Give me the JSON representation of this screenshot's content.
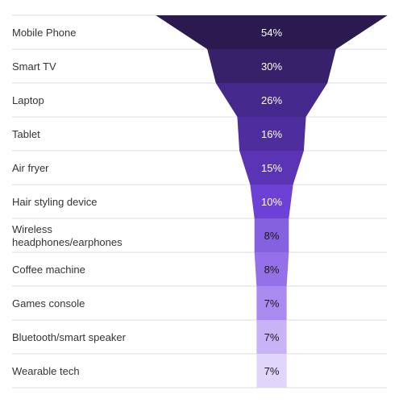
{
  "chart_data": {
    "type": "funnel",
    "title": "",
    "categories": [
      "Mobile Phone",
      "Smart TV",
      "Laptop",
      "Tablet",
      "Air fryer",
      "Hair styling device",
      "Wireless headphones/earphones",
      "Coffee machine",
      "Games console",
      "Bluetooth/smart speaker",
      "Wearable tech"
    ],
    "values": [
      54,
      30,
      26,
      16,
      15,
      10,
      8,
      8,
      7,
      7,
      7
    ],
    "value_labels": [
      "54%",
      "30%",
      "26%",
      "16%",
      "15%",
      "10%",
      "8%",
      "8%",
      "7%",
      "7%",
      "7%"
    ],
    "category_label_lines": [
      [
        "Mobile Phone"
      ],
      [
        "Smart TV"
      ],
      [
        "Laptop"
      ],
      [
        "Tablet"
      ],
      [
        "Air fryer"
      ],
      [
        "Hair styling device"
      ],
      [
        "Wireless",
        "headphones/earphones"
      ],
      [
        "Coffee machine"
      ],
      [
        "Games console"
      ],
      [
        "Bluetooth/smart speaker"
      ],
      [
        "Wearable tech"
      ]
    ],
    "colors": [
      "#2b1a4f",
      "#36216a",
      "#45288b",
      "#4e2e9f",
      "#5a34b5",
      "#6e41d6",
      "#8361df",
      "#9470e9",
      "#a98bf0",
      "#c8b3f6",
      "#e1d5fb"
    ],
    "value_label_colors": [
      "#ffffff",
      "#ffffff",
      "#ffffff",
      "#ffffff",
      "#ffffff",
      "#ffffff",
      "#1a1a1a",
      "#1a1a1a",
      "#1a1a1a",
      "#1a1a1a",
      "#1a1a1a"
    ],
    "grid_lines": true,
    "legend": "none"
  }
}
